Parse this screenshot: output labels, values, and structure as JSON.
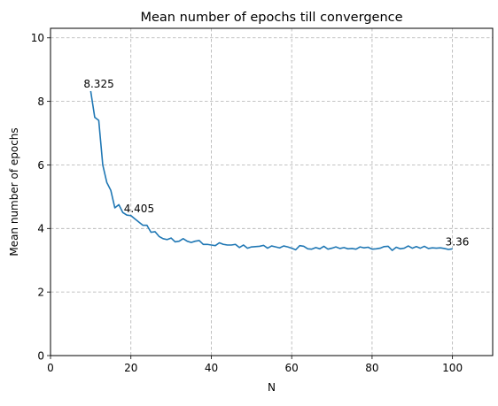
{
  "chart_data": {
    "type": "line",
    "title": "Mean number of epochs till convergence",
    "xlabel": "N",
    "ylabel": "Mean number of epochs",
    "xlim": [
      0,
      110
    ],
    "ylim": [
      0,
      10.3
    ],
    "xticks": [
      0,
      20,
      40,
      60,
      80,
      100
    ],
    "yticks": [
      0,
      2,
      4,
      6,
      8,
      10
    ],
    "xtick_labels": [
      "0",
      "20",
      "40",
      "60",
      "80",
      "100"
    ],
    "ytick_labels": [
      "0",
      "2",
      "4",
      "6",
      "8",
      "10"
    ],
    "grid": true,
    "grid_style": "dashed",
    "legend": "none",
    "series": [
      {
        "color": "#1f77b4",
        "x": [
          10,
          11,
          12,
          13,
          14,
          15,
          16,
          17,
          18,
          19,
          20,
          21,
          22,
          23,
          24,
          25,
          26,
          27,
          28,
          29,
          30,
          31,
          32,
          33,
          34,
          35,
          36,
          37,
          38,
          39,
          40,
          41,
          42,
          43,
          44,
          45,
          46,
          47,
          48,
          49,
          50,
          51,
          52,
          53,
          54,
          55,
          56,
          57,
          58,
          59,
          60,
          61,
          62,
          63,
          64,
          65,
          66,
          67,
          68,
          69,
          70,
          71,
          72,
          73,
          74,
          75,
          76,
          77,
          78,
          79,
          80,
          81,
          82,
          83,
          84,
          85,
          86,
          87,
          88,
          89,
          90,
          91,
          92,
          93,
          94,
          95,
          96,
          97,
          98,
          99,
          100
        ],
        "y": [
          8.325,
          7.5,
          7.4,
          6.0,
          5.45,
          5.2,
          4.65,
          4.75,
          4.5,
          4.42,
          4.405,
          4.3,
          4.2,
          4.1,
          4.1,
          3.88,
          3.9,
          3.75,
          3.68,
          3.65,
          3.7,
          3.58,
          3.6,
          3.68,
          3.6,
          3.56,
          3.6,
          3.62,
          3.5,
          3.5,
          3.48,
          3.46,
          3.55,
          3.5,
          3.48,
          3.48,
          3.5,
          3.4,
          3.48,
          3.38,
          3.42,
          3.43,
          3.44,
          3.47,
          3.38,
          3.45,
          3.42,
          3.39,
          3.45,
          3.42,
          3.38,
          3.33,
          3.46,
          3.44,
          3.36,
          3.35,
          3.4,
          3.36,
          3.44,
          3.35,
          3.38,
          3.42,
          3.37,
          3.4,
          3.36,
          3.37,
          3.35,
          3.42,
          3.39,
          3.41,
          3.35,
          3.36,
          3.38,
          3.43,
          3.44,
          3.31,
          3.41,
          3.36,
          3.38,
          3.45,
          3.38,
          3.43,
          3.38,
          3.44,
          3.37,
          3.39,
          3.38,
          3.39,
          3.37,
          3.34,
          3.36
        ]
      }
    ],
    "annotations": [
      {
        "text": "8.325",
        "x": 10,
        "y": 8.325
      },
      {
        "text": "4.405",
        "x": 20,
        "y": 4.405
      },
      {
        "text": "3.36",
        "x": 100,
        "y": 3.36
      }
    ]
  }
}
